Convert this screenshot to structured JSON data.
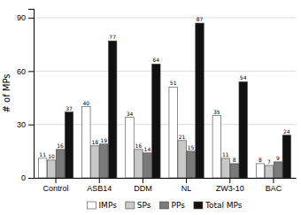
{
  "chart_data": {
    "type": "bar",
    "categories": [
      "Control",
      "ASB14",
      "DDM",
      "NL",
      "ZW3-10",
      "BAC"
    ],
    "series": [
      {
        "name": "IMPs",
        "color": "#ffffff",
        "values": [
          11,
          40,
          34,
          51,
          35,
          8
        ]
      },
      {
        "name": "SPs",
        "color": "#c8c8c8",
        "values": [
          10,
          18,
          16,
          21,
          11,
          7
        ]
      },
      {
        "name": "PPs",
        "color": "#7a7a7a",
        "values": [
          16,
          19,
          14,
          15,
          8,
          9
        ]
      },
      {
        "name": "Total MPs",
        "color": "#111111",
        "values": [
          37,
          77,
          64,
          87,
          54,
          24
        ]
      }
    ],
    "ylabel": "# of MPs",
    "ylim": [
      0,
      95
    ],
    "yticks": [
      0,
      30,
      60,
      90
    ],
    "grid": true,
    "legend": "bottom",
    "data_labels": true
  }
}
